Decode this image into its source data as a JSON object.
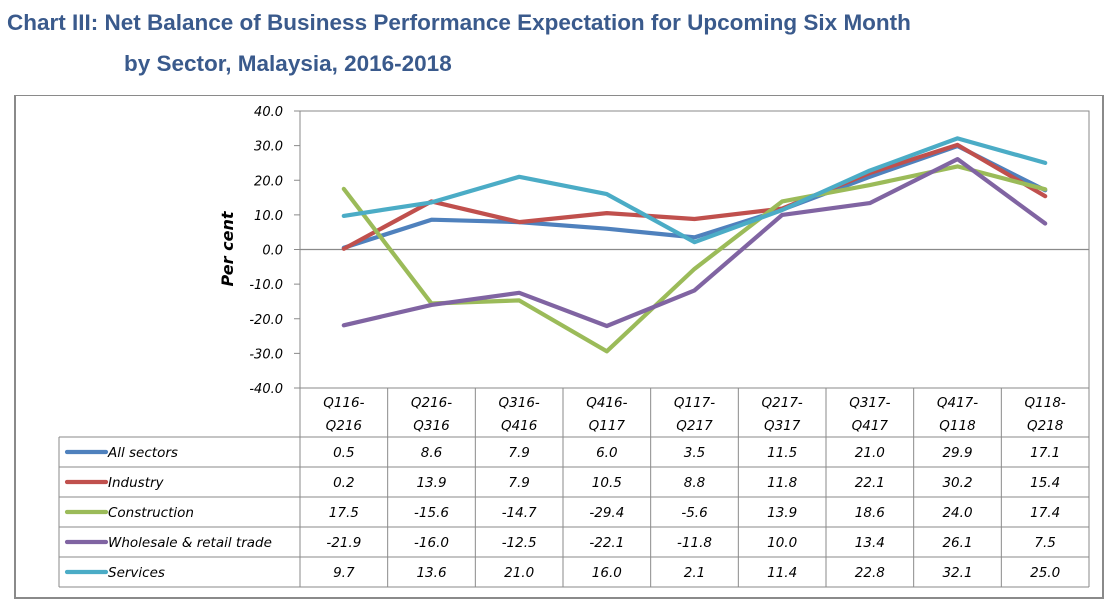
{
  "title": {
    "line1": "Chart III: Net Balance of Business Performance Expectation for Upcoming Six Month",
    "line2": "by Sector, Malaysia, 2016-2018"
  },
  "chart_data": {
    "type": "line",
    "title": "Chart III: Net Balance of Business Performance Expectation for Upcoming Six Month by Sector, Malaysia, 2016-2018",
    "xlabel": "",
    "ylabel": "Per cent",
    "ylim": [
      -40,
      40
    ],
    "yticks": [
      40,
      30,
      20,
      10,
      0,
      -10,
      -20,
      -30,
      -40
    ],
    "ytick_labels": [
      "40.0",
      "30.0",
      "20.0",
      "10.0",
      "0.0",
      "-10.0",
      "-20.0",
      "-30.0",
      "-40.0"
    ],
    "grid": false,
    "zero_line": true,
    "legend": "data-table-below",
    "categories": [
      [
        "Q116-",
        "Q216"
      ],
      [
        "Q216-",
        "Q316"
      ],
      [
        "Q316-",
        "Q416"
      ],
      [
        "Q416-",
        "Q117"
      ],
      [
        "Q117-",
        "Q217"
      ],
      [
        "Q217-",
        "Q317"
      ],
      [
        "Q317-",
        "Q417"
      ],
      [
        "Q417-",
        "Q118"
      ],
      [
        "Q118-",
        "Q218"
      ]
    ],
    "series": [
      {
        "name": "All sectors",
        "color": "#4F81BD",
        "values": [
          0.5,
          8.6,
          7.9,
          6.0,
          3.5,
          11.5,
          21.0,
          29.9,
          17.1
        ],
        "labels": [
          "0.5",
          "8.6",
          "7.9",
          "6.0",
          "3.5",
          "11.5",
          "21.0",
          "29.9",
          "17.1"
        ]
      },
      {
        "name": "Industry",
        "color": "#C0504D",
        "values": [
          0.2,
          13.9,
          7.9,
          10.5,
          8.8,
          11.8,
          22.1,
          30.2,
          15.4
        ],
        "labels": [
          "0.2",
          "13.9",
          "7.9",
          "10.5",
          "8.8",
          "11.8",
          "22.1",
          "30.2",
          "15.4"
        ]
      },
      {
        "name": "Construction",
        "color": "#9BBB59",
        "values": [
          17.5,
          -15.6,
          -14.7,
          -29.4,
          -5.6,
          13.9,
          18.6,
          24.0,
          17.4
        ],
        "labels": [
          "17.5",
          "-15.6",
          "-14.7",
          "-29.4",
          "-5.6",
          "13.9",
          "18.6",
          "24.0",
          "17.4"
        ]
      },
      {
        "name": "Wholesale & retail trade",
        "color": "#8064A2",
        "values": [
          -21.9,
          -16.0,
          -12.5,
          -22.1,
          -11.8,
          10.0,
          13.4,
          26.1,
          7.5
        ],
        "labels": [
          "-21.9",
          "-16.0",
          "-12.5",
          "-22.1",
          "-11.8",
          "10.0",
          "13.4",
          "26.1",
          "7.5"
        ]
      },
      {
        "name": "Services",
        "color": "#4BACC6",
        "values": [
          9.7,
          13.6,
          21.0,
          16.0,
          2.1,
          11.4,
          22.8,
          32.1,
          25.0
        ],
        "labels": [
          "9.7",
          "13.6",
          "21.0",
          "16.0",
          "2.1",
          "11.4",
          "22.8",
          "32.1",
          "25.0"
        ]
      }
    ]
  }
}
